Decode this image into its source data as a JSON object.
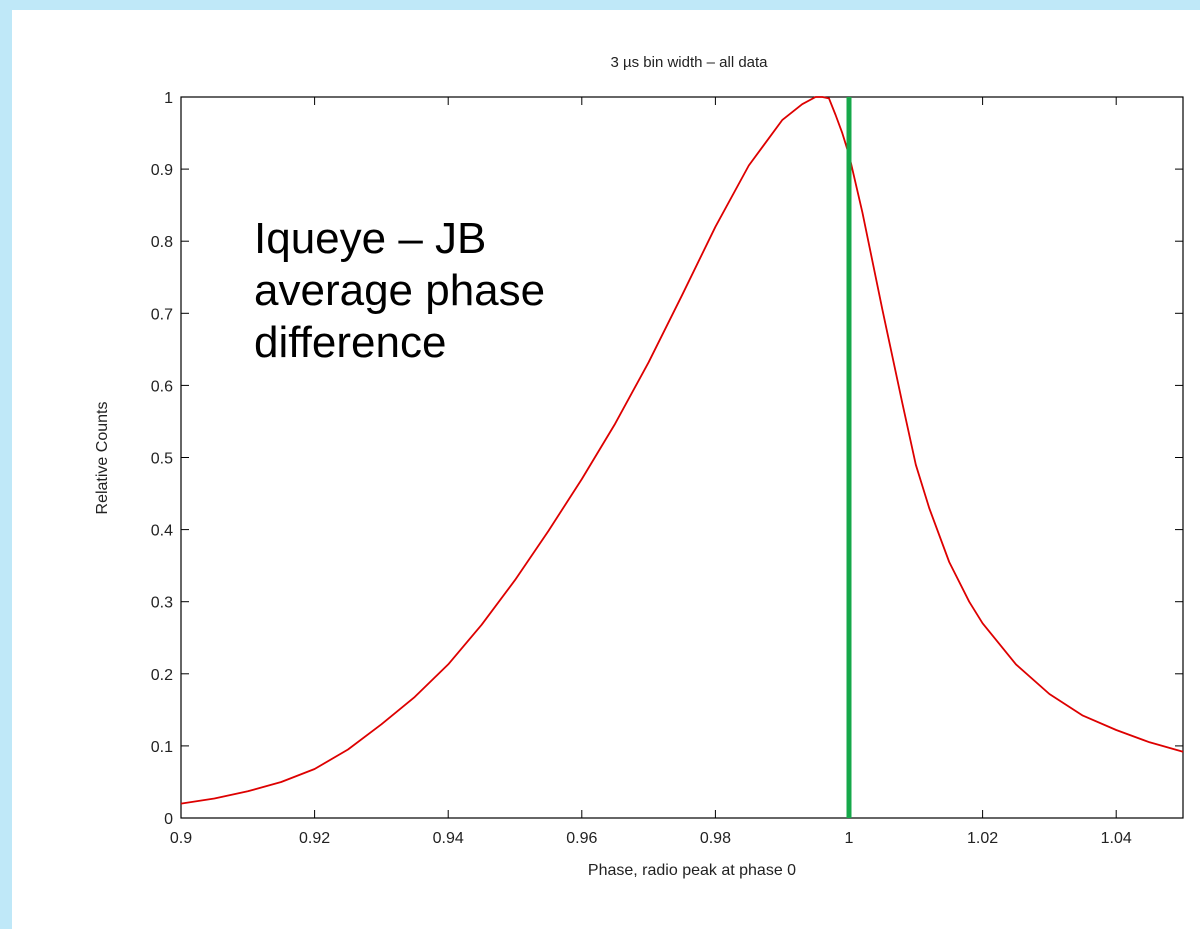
{
  "colors": {
    "background": "#bfe8f8",
    "curve": "#dd0000",
    "marker": "#16a84a",
    "axis": "#000000"
  },
  "annotation": {
    "lines": [
      "Iqueye – JB",
      "average phase",
      "difference"
    ]
  },
  "chart_data": {
    "type": "line",
    "title": "3 µs bin width – all data",
    "xlabel": "Phase, radio peak at phase 0",
    "ylabel": "Relative Counts",
    "xlim": [
      0.9,
      1.05
    ],
    "ylim": [
      0,
      1
    ],
    "grid": false,
    "x_ticks": [
      0.9,
      0.92,
      0.94,
      0.96,
      0.98,
      1,
      1.02,
      1.04
    ],
    "x_tick_labels": [
      "0.9",
      "0.92",
      "0.94",
      "0.96",
      "0.98",
      "1",
      "1.02",
      "1.04"
    ],
    "y_ticks": [
      0,
      0.1,
      0.2,
      0.3,
      0.4,
      0.5,
      0.6,
      0.7,
      0.8,
      0.9,
      1
    ],
    "y_tick_labels": [
      "0",
      "0.1",
      "0.2",
      "0.3",
      "0.4",
      "0.5",
      "0.6",
      "0.7",
      "0.8",
      "0.9",
      "1"
    ],
    "vertical_marker_x": 1.0,
    "x": [
      0.9,
      0.905,
      0.91,
      0.915,
      0.92,
      0.925,
      0.93,
      0.935,
      0.94,
      0.945,
      0.95,
      0.955,
      0.96,
      0.965,
      0.97,
      0.975,
      0.98,
      0.985,
      0.99,
      0.993,
      0.995,
      0.996,
      0.997,
      0.998,
      0.999,
      1.0,
      1.002,
      1.005,
      1.008,
      1.01,
      1.012,
      1.015,
      1.018,
      1.02,
      1.025,
      1.03,
      1.035,
      1.04,
      1.045,
      1.05
    ],
    "y": [
      0.02,
      0.027,
      0.037,
      0.05,
      0.068,
      0.095,
      0.13,
      0.168,
      0.213,
      0.268,
      0.33,
      0.398,
      0.47,
      0.547,
      0.632,
      0.725,
      0.82,
      0.905,
      0.968,
      0.99,
      1.0,
      1.0,
      0.998,
      0.975,
      0.95,
      0.92,
      0.84,
      0.705,
      0.575,
      0.49,
      0.43,
      0.355,
      0.3,
      0.27,
      0.213,
      0.172,
      0.142,
      0.122,
      0.105,
      0.092
    ]
  }
}
